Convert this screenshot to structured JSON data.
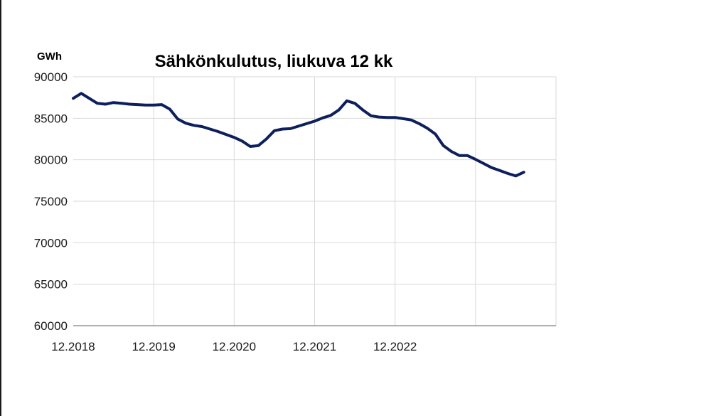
{
  "chart_data": {
    "type": "line",
    "title": "Sähkönkulutus, liukuva 12 kk",
    "ylabel": "GWh",
    "xlabel": "",
    "ylim": [
      60000,
      90000
    ],
    "ytick_labels": [
      "60000",
      "65000",
      "70000",
      "75000",
      "80000",
      "85000",
      "90000"
    ],
    "xlim": [
      0,
      60
    ],
    "xtick_labels": [
      "12.2018",
      "12.2019",
      "12.2020",
      "12.2021",
      "12.2022",
      "",
      ""
    ],
    "grid": true,
    "legend": "none",
    "series": [
      {
        "color": "#0d1f5c",
        "points": [
          [
            0,
            87400
          ],
          [
            1,
            88000
          ],
          [
            2,
            87400
          ],
          [
            3,
            86800
          ],
          [
            4,
            86700
          ],
          [
            5,
            86900
          ],
          [
            6,
            86800
          ],
          [
            7,
            86700
          ],
          [
            8,
            86650
          ],
          [
            9,
            86600
          ],
          [
            10,
            86600
          ],
          [
            11,
            86650
          ],
          [
            12,
            86100
          ],
          [
            13,
            84900
          ],
          [
            14,
            84400
          ],
          [
            15,
            84150
          ],
          [
            16,
            84000
          ],
          [
            17,
            83700
          ],
          [
            18,
            83400
          ],
          [
            19,
            83050
          ],
          [
            20,
            82700
          ],
          [
            21,
            82250
          ],
          [
            22,
            81600
          ],
          [
            23,
            81700
          ],
          [
            24,
            82500
          ],
          [
            25,
            83500
          ],
          [
            26,
            83700
          ],
          [
            27,
            83750
          ],
          [
            28,
            84050
          ],
          [
            29,
            84350
          ],
          [
            30,
            84650
          ],
          [
            31,
            85050
          ],
          [
            32,
            85350
          ],
          [
            33,
            86000
          ],
          [
            34,
            87100
          ],
          [
            35,
            86800
          ],
          [
            36,
            86000
          ],
          [
            37,
            85300
          ],
          [
            38,
            85150
          ],
          [
            39,
            85100
          ],
          [
            40,
            85100
          ],
          [
            41,
            84950
          ],
          [
            42,
            84800
          ],
          [
            43,
            84350
          ],
          [
            44,
            83800
          ],
          [
            45,
            83100
          ],
          [
            46,
            81700
          ],
          [
            47,
            81000
          ],
          [
            48,
            80500
          ],
          [
            49,
            80500
          ],
          [
            50,
            80050
          ],
          [
            51,
            79550
          ],
          [
            52,
            79050
          ],
          [
            53,
            78700
          ],
          [
            54,
            78350
          ],
          [
            55,
            78050
          ],
          [
            56,
            78500
          ]
        ]
      }
    ]
  }
}
